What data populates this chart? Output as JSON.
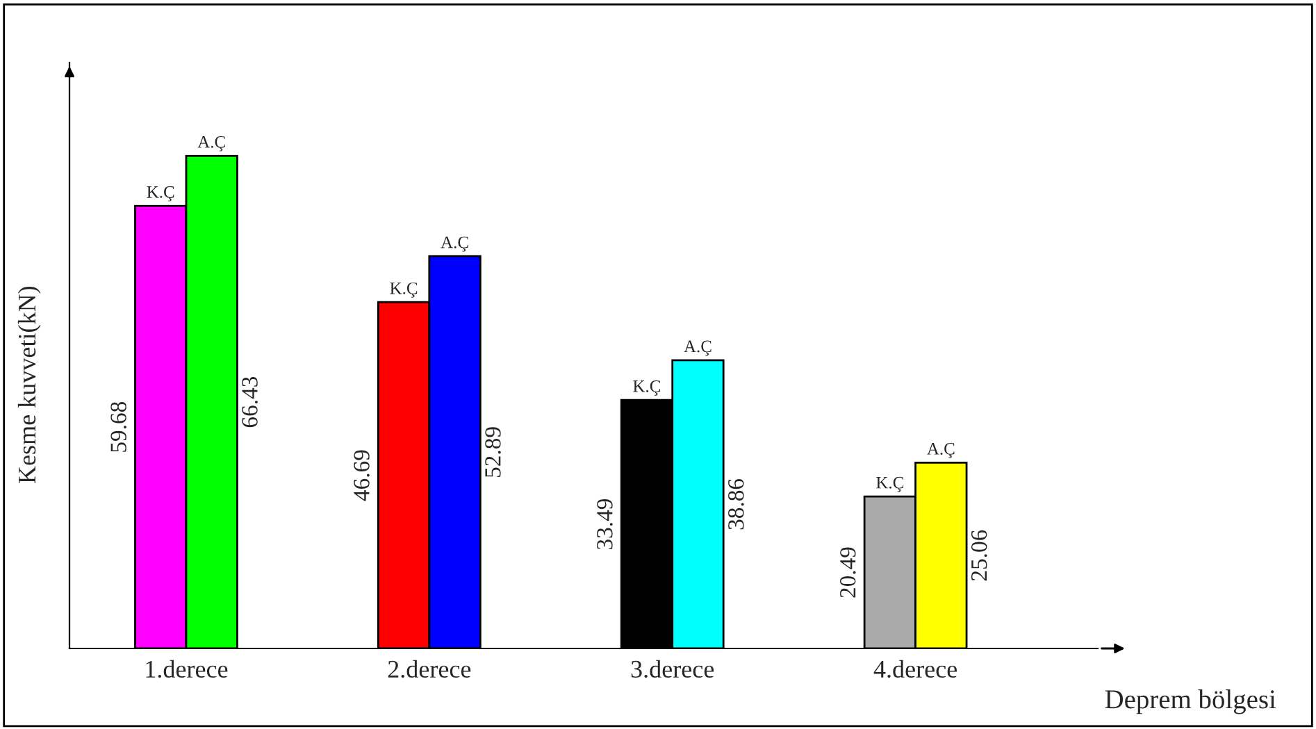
{
  "chart_data": {
    "type": "bar",
    "xlabel": "Deprem bölgesi",
    "ylabel": "Kesme kuvveti(kN)",
    "categories": [
      "1.derece",
      "2.derece",
      "3.derece",
      "4.derece"
    ],
    "series": [
      {
        "name": "K.Ç",
        "colors": [
          "#ff00ff",
          "#ff0000",
          "#000000",
          "#aaaaaa"
        ],
        "values": [
          59.68,
          46.69,
          33.49,
          20.49
        ]
      },
      {
        "name": "A.Ç",
        "colors": [
          "#00ff00",
          "#0000ff",
          "#00ffff",
          "#ffff00"
        ],
        "values": [
          66.43,
          52.89,
          38.86,
          25.06
        ]
      }
    ],
    "ylim": [
      0,
      79
    ],
    "data_labels": true,
    "tick_labels": "x",
    "legend": false,
    "grid": false
  }
}
